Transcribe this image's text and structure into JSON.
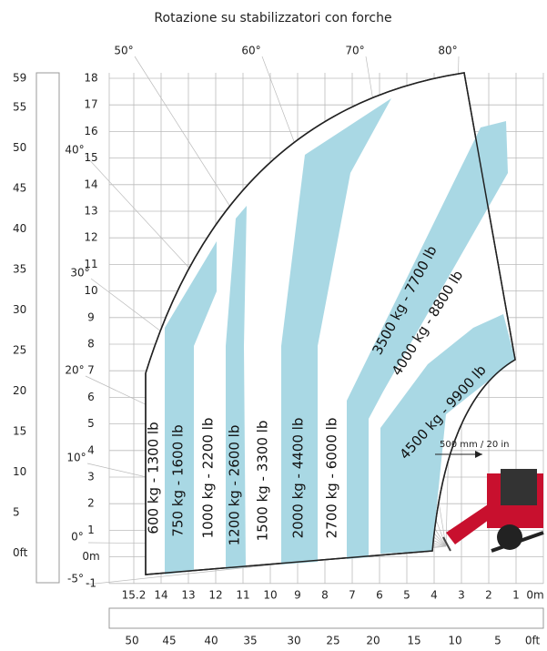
{
  "title": "Rotazione su stabilizzatori con forche",
  "ft_axis": [
    "59",
    "55",
    "50",
    "45",
    "40",
    "35",
    "30",
    "25",
    "20",
    "15",
    "10",
    "5",
    "0ft"
  ],
  "m_axis": [
    "18",
    "17",
    "16",
    "15",
    "14",
    "13",
    "12",
    "11",
    "10",
    "9",
    "8",
    "7",
    "6",
    "5",
    "4",
    "3",
    "2",
    "1",
    "0m",
    "-1"
  ],
  "angles_left": [
    "40°",
    "30°",
    "20°",
    "10°",
    "0°",
    "-5°"
  ],
  "angles_top": [
    "50°",
    "60°",
    "70°",
    "80°"
  ],
  "x_m_axis": [
    "15.2",
    "14",
    "13",
    "12",
    "11",
    "10",
    "9",
    "8",
    "7",
    "6",
    "5",
    "4",
    "3",
    "2",
    "1",
    "0m"
  ],
  "x_ft_axis": [
    "50",
    "45",
    "40",
    "35",
    "30",
    "25",
    "20",
    "15",
    "10",
    "5",
    "0ft"
  ],
  "zones": [
    "600 kg - 1300 lb",
    "750 kg - 1600 lb",
    "1000 kg - 2200 lb",
    "1200 kg - 2600 lb",
    "1500 kg - 3300 lb",
    "2000 kg - 4400 lb",
    "2700 kg - 6000 lb",
    "3500 kg - 7700 lb",
    "4000 kg - 8800 lb",
    "4500 kg - 9900 lb"
  ],
  "annotation": "500 mm / 20 in"
}
